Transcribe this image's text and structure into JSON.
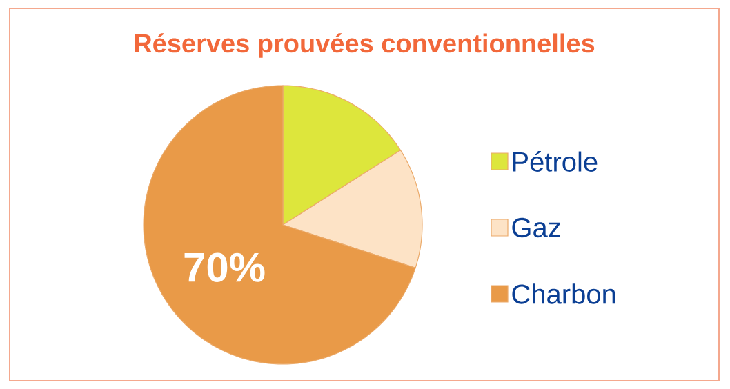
{
  "chart_data": {
    "type": "pie",
    "title": "Réserves prouvées conventionnelles",
    "categories": [
      "Pétrole",
      "Gaz",
      "Charbon"
    ],
    "values": [
      16,
      14,
      70
    ],
    "colors": [
      "#dde63c",
      "#fde3c6",
      "#e99a48"
    ],
    "value_labels": [
      null,
      null,
      "70%"
    ],
    "legend": "right"
  }
}
